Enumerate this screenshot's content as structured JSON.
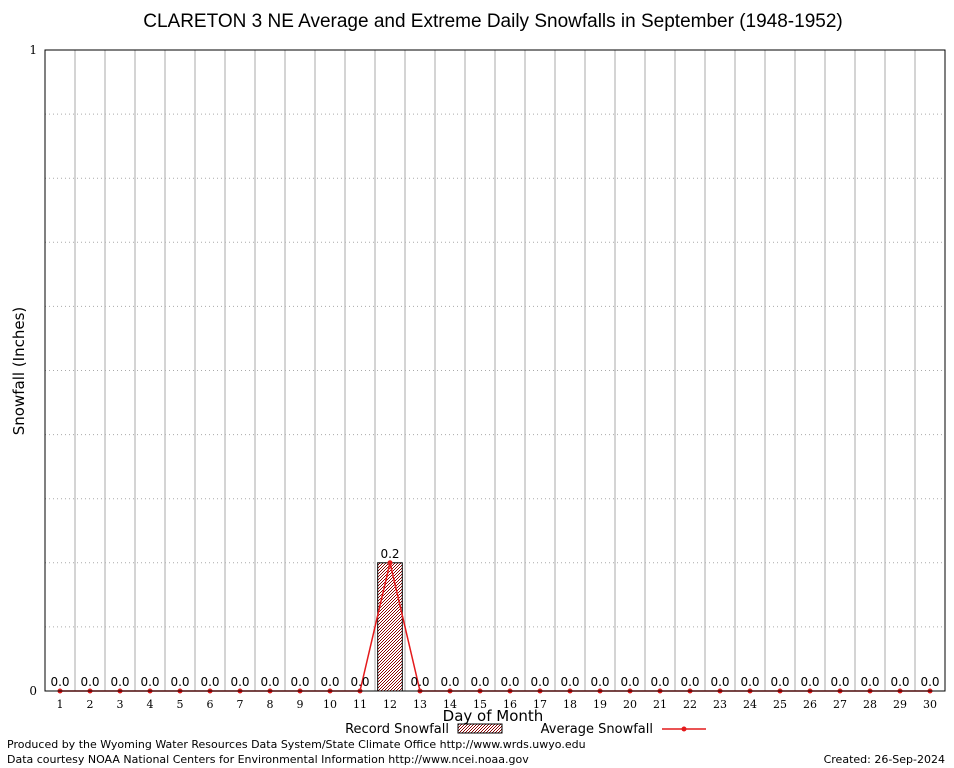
{
  "chart_data": {
    "type": "bar",
    "title": "CLARETON 3 NE Average and Extreme Daily Snowfalls in September (1948-1952)",
    "xlabel": "Day of Month",
    "ylabel": "Snowfall (Inches)",
    "ylim": [
      0,
      1
    ],
    "y_ticks": [
      "0",
      "1"
    ],
    "grid": true,
    "categories": [
      "1",
      "2",
      "3",
      "4",
      "5",
      "6",
      "7",
      "8",
      "9",
      "10",
      "11",
      "12",
      "13",
      "14",
      "15",
      "16",
      "17",
      "18",
      "19",
      "20",
      "21",
      "22",
      "23",
      "24",
      "25",
      "26",
      "27",
      "28",
      "29",
      "30"
    ],
    "series": [
      {
        "name": "Record Snowfall",
        "type": "bar",
        "color": "#8b0000",
        "values": [
          0.0,
          0.0,
          0.0,
          0.0,
          0.0,
          0.0,
          0.0,
          0.0,
          0.0,
          0.0,
          0.0,
          0.2,
          0.0,
          0.0,
          0.0,
          0.0,
          0.0,
          0.0,
          0.0,
          0.0,
          0.0,
          0.0,
          0.0,
          0.0,
          0.0,
          0.0,
          0.0,
          0.0,
          0.0,
          0.0
        ],
        "labels": [
          "0.0",
          "0.0",
          "0.0",
          "0.0",
          "0.0",
          "0.0",
          "0.0",
          "0.0",
          "0.0",
          "0.0",
          "0.0",
          "0.2",
          "0.0",
          "0.0",
          "0.0",
          "0.0",
          "0.0",
          "0.0",
          "0.0",
          "0.0",
          "0.0",
          "0.0",
          "0.0",
          "0.0",
          "0.0",
          "0.0",
          "0.0",
          "0.0",
          "0.0",
          "0.0"
        ]
      },
      {
        "name": "Average Snowfall",
        "type": "line",
        "color": "#e41a1c",
        "values": [
          0.0,
          0.0,
          0.0,
          0.0,
          0.0,
          0.0,
          0.0,
          0.0,
          0.0,
          0.0,
          0.0,
          0.2,
          0.0,
          0.0,
          0.0,
          0.0,
          0.0,
          0.0,
          0.0,
          0.0,
          0.0,
          0.0,
          0.0,
          0.0,
          0.0,
          0.0,
          0.0,
          0.0,
          0.0,
          0.0
        ]
      }
    ],
    "legend_position": "bottom"
  },
  "footer": {
    "produced_by": "Produced by the Wyoming Water Resources Data System/State Climate Office http://www.wrds.uwyo.edu",
    "courtesy": "Data courtesy NOAA National Centers for Environmental Information http://www.ncei.noaa.gov",
    "created": "Created: 26-Sep-2024"
  }
}
